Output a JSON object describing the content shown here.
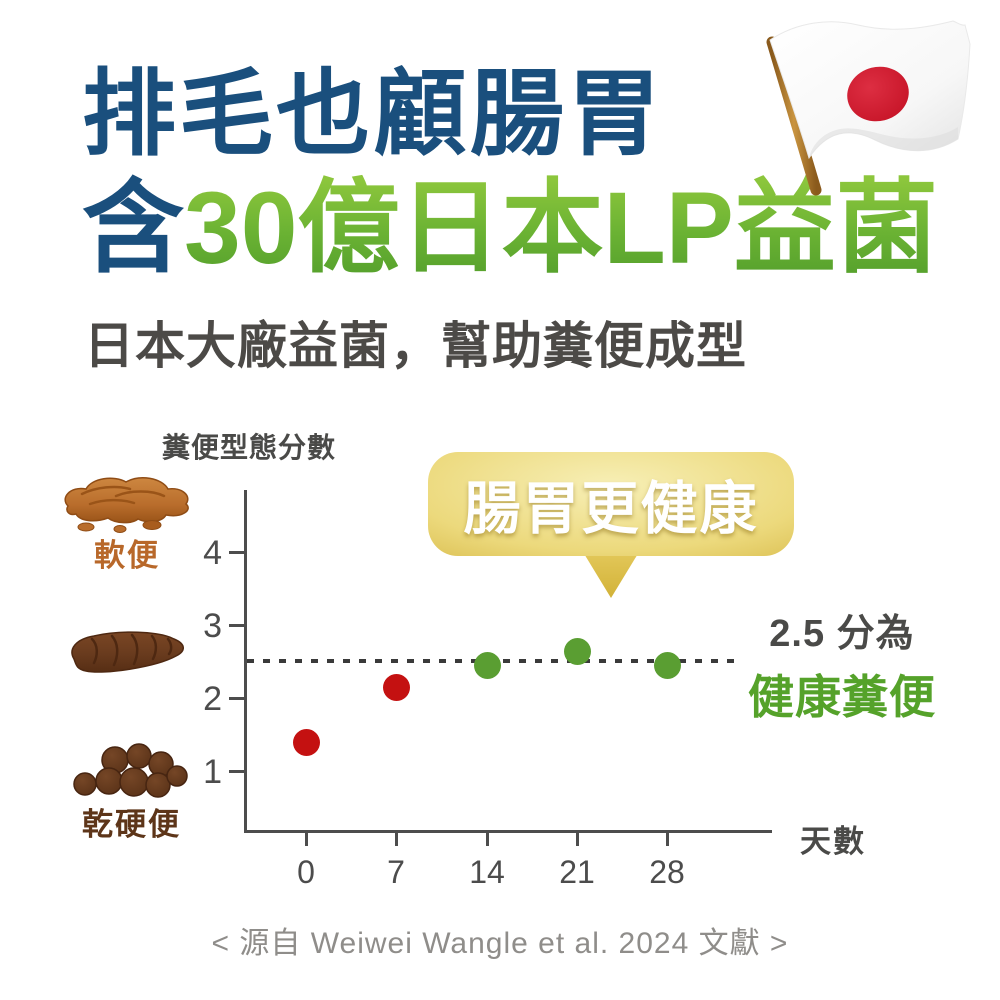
{
  "header": {
    "title_line1": "排毛也顧腸胃",
    "title_line2_prefix": "含",
    "title_line2_highlight": "30億日本LP益菌",
    "subtitle": "日本大廠益菌，幫助糞便成型"
  },
  "chart": {
    "callout": "腸胃更健康",
    "annotation_line1": "2.5 分為",
    "annotation_line2": "健康糞便",
    "left_icons": [
      {
        "icon": "soft-stool-icon",
        "label": "軟便"
      },
      {
        "icon": "normal-stool-icon",
        "label": ""
      },
      {
        "icon": "dry-hard-stool-icon",
        "label": "乾硬便"
      }
    ]
  },
  "chart_data": {
    "type": "scatter",
    "title": "",
    "xlabel": "天數",
    "ylabel": "糞便型態分數",
    "x": [
      0,
      7,
      14,
      21,
      28
    ],
    "values": [
      1.4,
      2.15,
      2.45,
      2.65,
      2.45
    ],
    "point_colors": [
      "#c41111",
      "#c41111",
      "#5a9e32",
      "#5a9e32",
      "#5a9e32"
    ],
    "point_meaning": "red = before/early supplementation, green = reaches healthy stool zone",
    "xticks": [
      "0",
      "7",
      "14",
      "21",
      "28"
    ],
    "yticks_top_to_bottom": [
      "4",
      "3",
      "2",
      "1"
    ],
    "ylim": [
      0,
      4.6
    ],
    "grid": false,
    "legend": null,
    "reference_line": {
      "y": 2.5,
      "style": "dotted",
      "label": "2.5 分為健康糞便"
    }
  },
  "colors": {
    "title_navy": "#1a4f7d",
    "title_green_top": "#8cc63c",
    "title_green_bottom": "#55a02c",
    "subtitle_gray": "#4c4a47",
    "axis_gray": "#4d4d4d",
    "dot_red": "#c41111",
    "dot_green": "#5a9e32",
    "callout_gold_edge": "#a8871c",
    "callout_gold_center": "#f7efb6",
    "annotation_green": "#55a22a",
    "soft_stool_orange": "#b8682a",
    "hard_stool_brown": "#5d3519",
    "citation_gray": "#8f8d8a",
    "flag_red": "#c00d20"
  },
  "footer": {
    "citation": "< 源自 Weiwei Wangle et al. 2024 文獻 >"
  }
}
